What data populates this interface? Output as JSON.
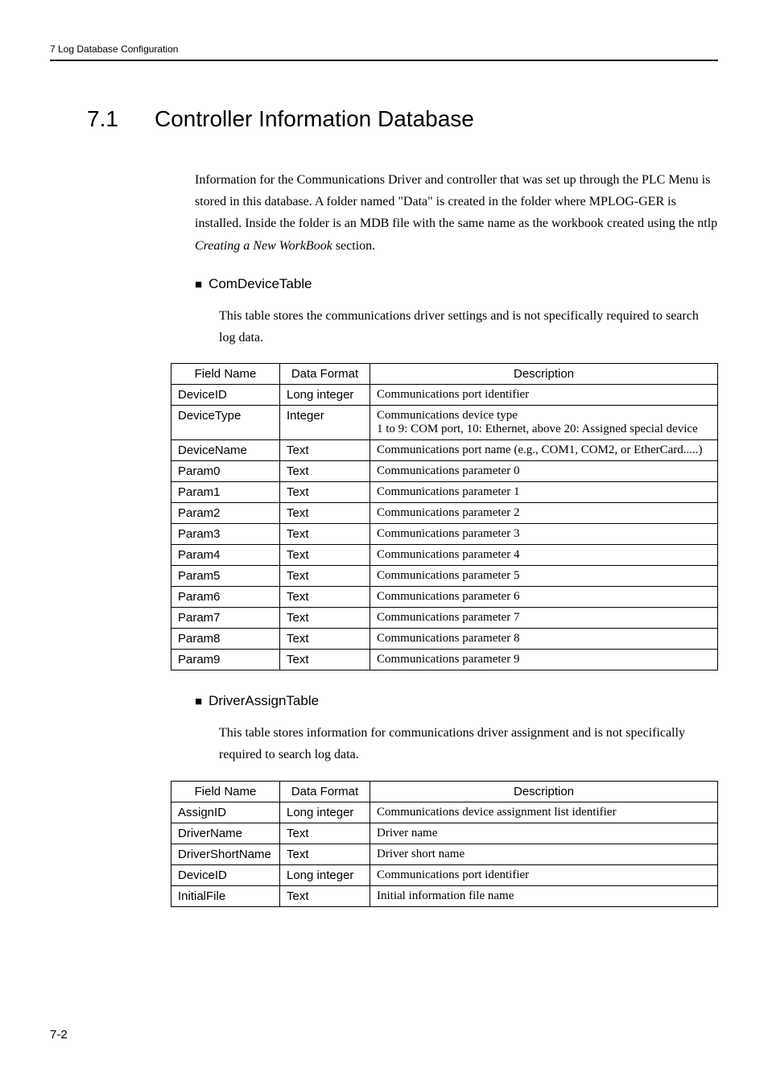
{
  "header": {
    "text": "7  Log Database Configuration"
  },
  "section": {
    "number": "7.1",
    "title": "Controller Information Database",
    "intro_p1": "Information for the Communications Driver and controller that was set up through the PLC Menu is stored in this database. A folder named \"Data\" is created in the folder where MPLOG-GER is installed. Inside the folder is an MDB file with the same name as the workbook created using the ntlp ",
    "intro_em": "Creating a New WorkBook",
    "intro_p2": " section."
  },
  "sub1": {
    "title": "ComDeviceTable",
    "desc": "This table stores the communications driver settings and is not specifically required to search log data.",
    "headers": {
      "field": "Field Name",
      "format": "Data Format",
      "desc": "Description"
    },
    "rows": [
      {
        "field": "DeviceID",
        "format": "Long integer",
        "desc": "Communications port identifier"
      },
      {
        "field": "DeviceType",
        "format": "Integer",
        "desc": "Communications device type\n1 to 9: COM port, 10: Ethernet, above 20: Assigned special device"
      },
      {
        "field": "DeviceName",
        "format": "Text",
        "desc": "Communications port name (e.g., COM1, COM2, or EtherCard.....)"
      },
      {
        "field": "Param0",
        "format": "Text",
        "desc": "Communications parameter 0"
      },
      {
        "field": "Param1",
        "format": "Text",
        "desc": "Communications parameter 1"
      },
      {
        "field": "Param2",
        "format": "Text",
        "desc": "Communications parameter 2"
      },
      {
        "field": "Param3",
        "format": "Text",
        "desc": "Communications parameter 3"
      },
      {
        "field": "Param4",
        "format": "Text",
        "desc": "Communications parameter 4"
      },
      {
        "field": "Param5",
        "format": "Text",
        "desc": "Communications parameter 5"
      },
      {
        "field": "Param6",
        "format": "Text",
        "desc": "Communications parameter 6"
      },
      {
        "field": "Param7",
        "format": "Text",
        "desc": "Communications parameter 7"
      },
      {
        "field": "Param8",
        "format": "Text",
        "desc": "Communications parameter 8"
      },
      {
        "field": "Param9",
        "format": "Text",
        "desc": "Communications parameter 9"
      }
    ]
  },
  "sub2": {
    "title": "DriverAssignTable",
    "desc": "This table stores information for communications driver assignment and is not specifically required to search log data.",
    "headers": {
      "field": "Field Name",
      "format": "Data Format",
      "desc": "Description"
    },
    "rows": [
      {
        "field": "AssignID",
        "format": "Long integer",
        "desc": "Communications device assignment list identifier"
      },
      {
        "field": "DriverName",
        "format": "Text",
        "desc": "Driver name"
      },
      {
        "field": "DriverShortName",
        "format": "Text",
        "desc": "Driver short name"
      },
      {
        "field": "DeviceID",
        "format": "Long integer",
        "desc": "Communications port identifier"
      },
      {
        "field": "InitialFile",
        "format": "Text",
        "desc": "Initial information file name"
      }
    ]
  },
  "footer": {
    "page": "7-2"
  }
}
